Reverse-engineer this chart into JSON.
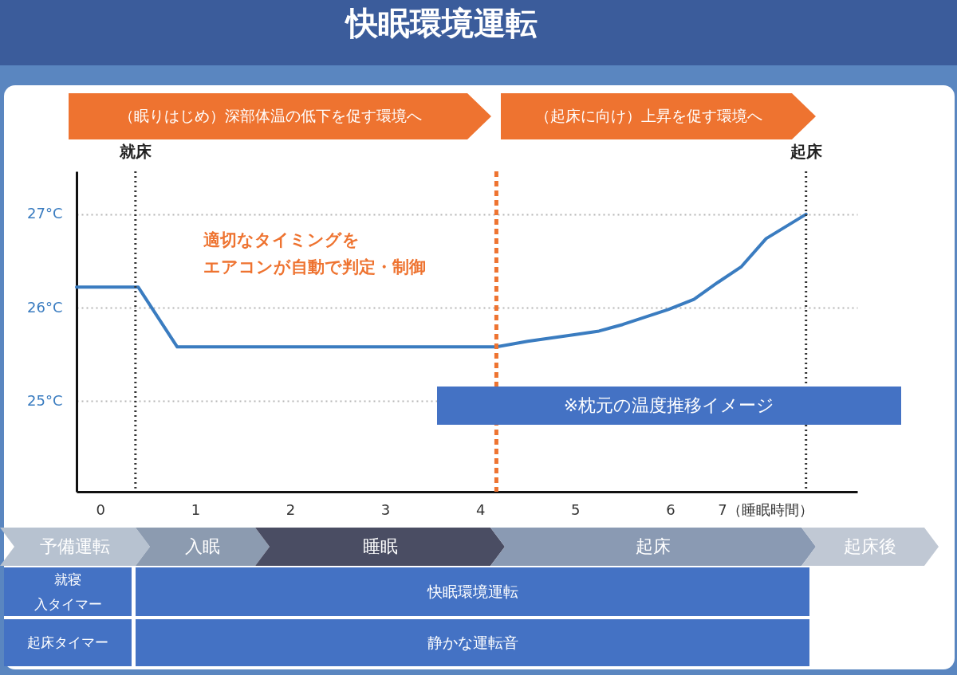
{
  "chart_data": {
    "type": "line",
    "title": "快眠環境運転",
    "x": [
      -0.25,
      0.4,
      0.81,
      4.17,
      4.5,
      4.99,
      5.25,
      5.5,
      5.98,
      6.25,
      6.5,
      6.75,
      7.01,
      7.43
    ],
    "series": [
      {
        "color": "#3a7cc0",
        "values": [
          26.22,
          26.22,
          25.58,
          25.58,
          25.64,
          25.71,
          25.75,
          25.82,
          25.98,
          26.09,
          26.27,
          26.44,
          26.74,
          27.0
        ]
      }
    ],
    "xlim": [
      -0.25,
      7.97
    ],
    "ylim": [
      24.03,
      27.46
    ],
    "xticks": [
      0,
      1,
      2,
      3,
      4,
      5,
      6,
      {
        "value": 7,
        "label": "7（睡眠時間）"
      }
    ],
    "yticks": [
      {
        "value": 25,
        "label": "25°C"
      },
      {
        "value": 26,
        "label": "26°C"
      },
      {
        "value": 27,
        "label": "27°C"
      }
    ],
    "grid": "y",
    "marker": "none",
    "line_style": "solid",
    "ref_lines": [
      {
        "axis": "x",
        "value": 0.37,
        "label": "就床",
        "color": "#333333",
        "line_style": "dotted"
      },
      {
        "axis": "x",
        "value": 7.43,
        "label": "起床",
        "color": "#333333",
        "line_style": "dotted"
      },
      {
        "axis": "x",
        "value": 4.17,
        "color": "#ee7330",
        "line_style": "dashed"
      }
    ],
    "annotations": [
      "（眠りはじめ）深部体温の低下を促す環境へ",
      "（起床に向け）上昇を促す環境へ",
      "適切なタイミングを",
      "エアコンが自動で判定・制御",
      "※枕元の温度推移イメージ",
      "予備運転",
      "入眠",
      "睡眠",
      "起床",
      "起床後",
      "就寝",
      "入タイマー",
      "快眠環境運転",
      "起床タイマー",
      "静かな運転音"
    ]
  }
}
